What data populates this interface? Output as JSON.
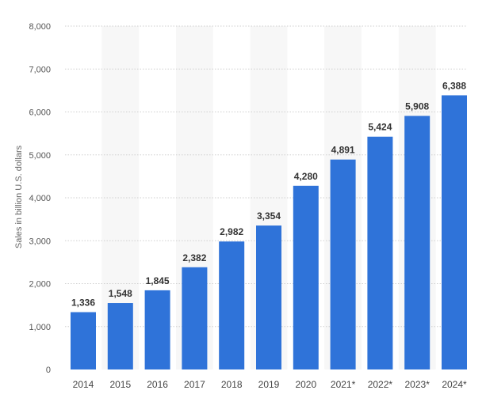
{
  "chart_data": {
    "type": "bar",
    "categories": [
      "2014",
      "2015",
      "2016",
      "2017",
      "2018",
      "2019",
      "2020",
      "2021*",
      "2022*",
      "2023*",
      "2024*"
    ],
    "values": [
      1336,
      1548,
      1845,
      2382,
      2982,
      3354,
      4280,
      4891,
      5424,
      5908,
      6388
    ],
    "value_labels": [
      "1,336",
      "1,548",
      "1,845",
      "2,382",
      "2,982",
      "3,354",
      "4,280",
      "4,891",
      "5,424",
      "5,908",
      "6,388"
    ],
    "title": "",
    "xlabel": "",
    "ylabel": "Sales in billion U.S. dollars",
    "ylim": [
      0,
      8000
    ],
    "yticks": [
      0,
      1000,
      2000,
      3000,
      4000,
      5000,
      6000,
      7000,
      8000
    ],
    "ytick_labels": [
      "0",
      "1,000",
      "2,000",
      "3,000",
      "4,000",
      "5,000",
      "6,000",
      "7,000",
      "8,000"
    ],
    "grid": true,
    "legend": "none",
    "colors": {
      "bar": "#2f73d9",
      "band": "#f7f7f7",
      "grid": "#cfcfcf"
    }
  }
}
